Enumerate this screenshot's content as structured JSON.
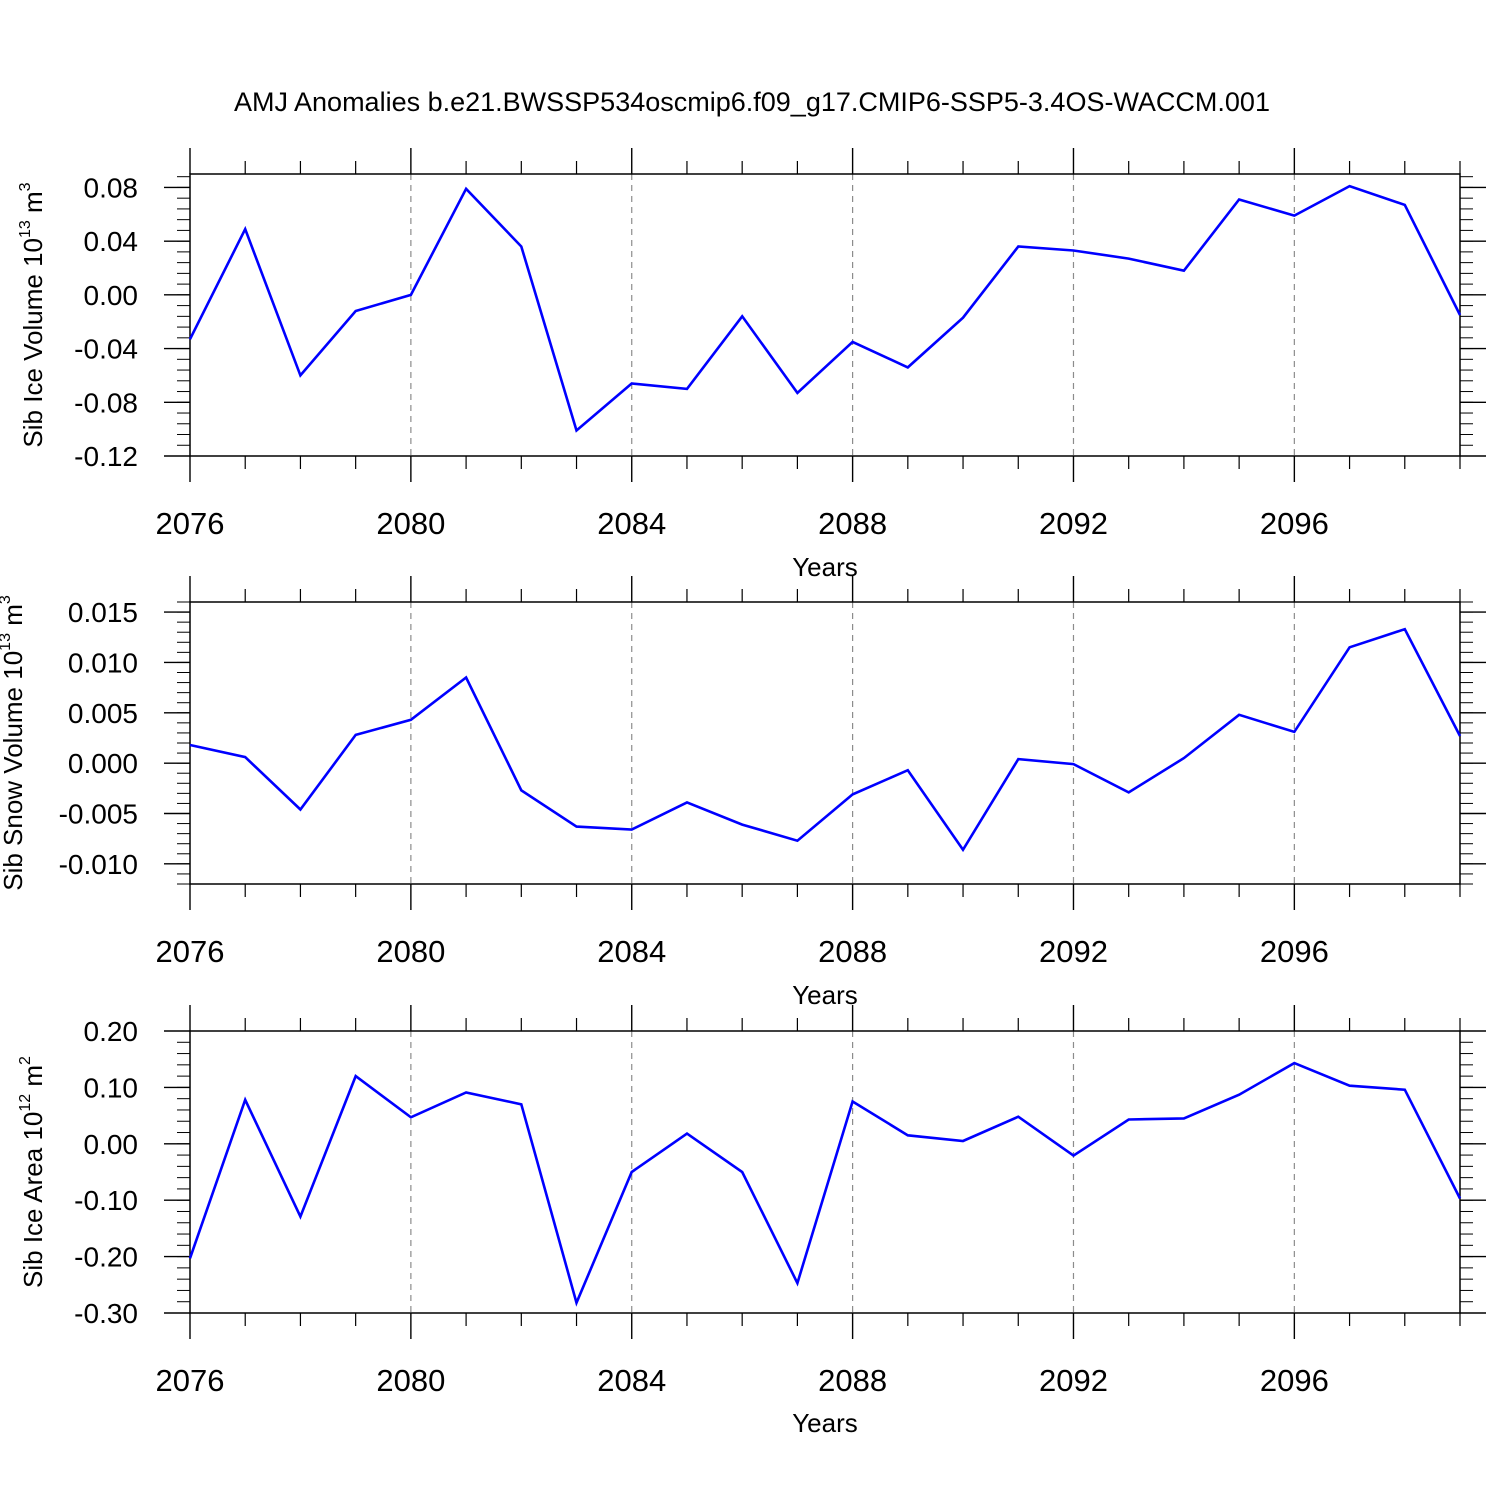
{
  "title": "AMJ Anomalies b.e21.BWSSP534oscmip6.f09_g17.CMIP6-SSP5-3.4OS-WACCM.001",
  "colors": {
    "line": "#0000ff",
    "axis": "#000000",
    "grid": "#8c8c8c"
  },
  "chart_data": [
    {
      "type": "line",
      "id": "ice-volume",
      "ylabel": {
        "prefix": "Sib Ice Volume 10",
        "exp1": "13",
        "mid": " m",
        "exp2": "3"
      },
      "xlabel": "Years",
      "xlim": [
        2076,
        2099
      ],
      "ylim": [
        -0.12,
        0.09
      ],
      "xticks": [
        2076,
        2080,
        2084,
        2088,
        2092,
        2096
      ],
      "xtick_labels": [
        "2076",
        "2080",
        "2084",
        "2088",
        "2092",
        "2096"
      ],
      "yticks": [
        0.08,
        0.04,
        0.0,
        -0.04,
        -0.08,
        -0.12
      ],
      "ytick_labels": [
        "0.08",
        "0.04",
        "0.00",
        "-0.04",
        "-0.08",
        "-0.12"
      ],
      "yminor_step": 0.008,
      "grid_x": true,
      "x": [
        2076,
        2077,
        2078,
        2079,
        2080,
        2081,
        2082,
        2083,
        2084,
        2085,
        2086,
        2087,
        2088,
        2089,
        2090,
        2091,
        2092,
        2093,
        2094,
        2095,
        2096,
        2097,
        2098,
        2099
      ],
      "values": [
        -0.033,
        0.049,
        -0.06,
        -0.012,
        0.0,
        0.079,
        0.036,
        -0.101,
        -0.066,
        -0.07,
        -0.016,
        -0.073,
        -0.035,
        -0.054,
        -0.017,
        0.036,
        0.033,
        0.027,
        0.018,
        0.071,
        0.059,
        0.081,
        0.067,
        -0.015
      ]
    },
    {
      "type": "line",
      "id": "snow-volume",
      "ylabel": {
        "prefix": "Sib Snow Volume 10",
        "exp1": "13",
        "mid": " m",
        "exp2": "3"
      },
      "xlabel": "Years",
      "xlim": [
        2076,
        2099
      ],
      "ylim": [
        -0.012,
        0.016
      ],
      "xticks": [
        2076,
        2080,
        2084,
        2088,
        2092,
        2096
      ],
      "xtick_labels": [
        "2076",
        "2080",
        "2084",
        "2088",
        "2092",
        "2096"
      ],
      "yticks": [
        0.015,
        0.01,
        0.005,
        0.0,
        -0.005,
        -0.01
      ],
      "ytick_labels": [
        "0.015",
        "0.010",
        "0.005",
        "0.000",
        "-0.005",
        "-0.010"
      ],
      "yminor_step": 0.001,
      "grid_x": true,
      "x": [
        2076,
        2077,
        2078,
        2079,
        2080,
        2081,
        2082,
        2083,
        2084,
        2085,
        2086,
        2087,
        2088,
        2089,
        2090,
        2091,
        2092,
        2093,
        2094,
        2095,
        2096,
        2097,
        2098,
        2099
      ],
      "values": [
        0.0018,
        0.0006,
        -0.0046,
        0.0028,
        0.0043,
        0.0085,
        -0.0027,
        -0.0063,
        -0.0066,
        -0.0039,
        -0.0061,
        -0.0077,
        -0.0031,
        -0.0007,
        -0.0086,
        0.0004,
        -0.0001,
        -0.0029,
        0.0005,
        0.0048,
        0.0031,
        0.0115,
        0.0133,
        0.0027
      ]
    },
    {
      "type": "line",
      "id": "ice-area",
      "ylabel": {
        "prefix": "Sib Ice Area 10",
        "exp1": "12",
        "mid": " m",
        "exp2": "2"
      },
      "xlabel": "Years",
      "xlim": [
        2076,
        2099
      ],
      "ylim": [
        -0.3,
        0.2
      ],
      "xticks": [
        2076,
        2080,
        2084,
        2088,
        2092,
        2096
      ],
      "xtick_labels": [
        "2076",
        "2080",
        "2084",
        "2088",
        "2092",
        "2096"
      ],
      "yticks": [
        0.2,
        0.1,
        0.0,
        -0.1,
        -0.2,
        -0.3
      ],
      "ytick_labels": [
        "0.20",
        "0.10",
        "0.00",
        "-0.10",
        "-0.20",
        "-0.30"
      ],
      "yminor_step": 0.02,
      "grid_x": true,
      "x": [
        2076,
        2077,
        2078,
        2079,
        2080,
        2081,
        2082,
        2083,
        2084,
        2085,
        2086,
        2087,
        2088,
        2089,
        2090,
        2091,
        2092,
        2093,
        2094,
        2095,
        2096,
        2097,
        2098,
        2099
      ],
      "values": [
        -0.203,
        0.078,
        -0.129,
        0.12,
        0.047,
        0.091,
        0.07,
        -0.282,
        -0.05,
        0.018,
        -0.05,
        -0.247,
        0.075,
        0.015,
        0.005,
        0.048,
        -0.021,
        0.043,
        0.045,
        0.087,
        0.143,
        0.103,
        0.096,
        -0.097
      ]
    }
  ]
}
